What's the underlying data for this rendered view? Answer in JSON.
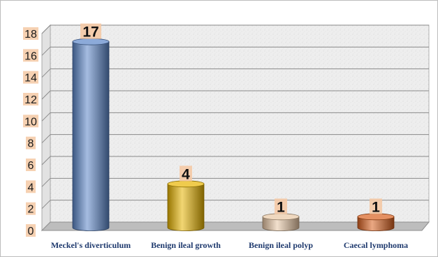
{
  "chart_data": {
    "type": "bar",
    "title": "",
    "xlabel": "",
    "ylabel": "",
    "categories": [
      "Meckel's diverticulum",
      "Benign ileal growth",
      "Benign ileal polyp",
      "Caecal lymphoma"
    ],
    "values": [
      17,
      4,
      1,
      1
    ],
    "data_labels": [
      "17",
      "4",
      "1",
      "1"
    ],
    "yticks": [
      "0",
      "2",
      "4",
      "6",
      "8",
      "10",
      "12",
      "14",
      "16",
      "18"
    ],
    "ylim": [
      0,
      18
    ],
    "grid": true,
    "legend": "none",
    "style": "3d-cylinder",
    "colors": [
      "#5b86c8",
      "#e8b400",
      "#e8c7a4",
      "#d9601e"
    ],
    "label_box_color": "#f4c9a5",
    "axis_text_color": "#1f3a6e"
  }
}
